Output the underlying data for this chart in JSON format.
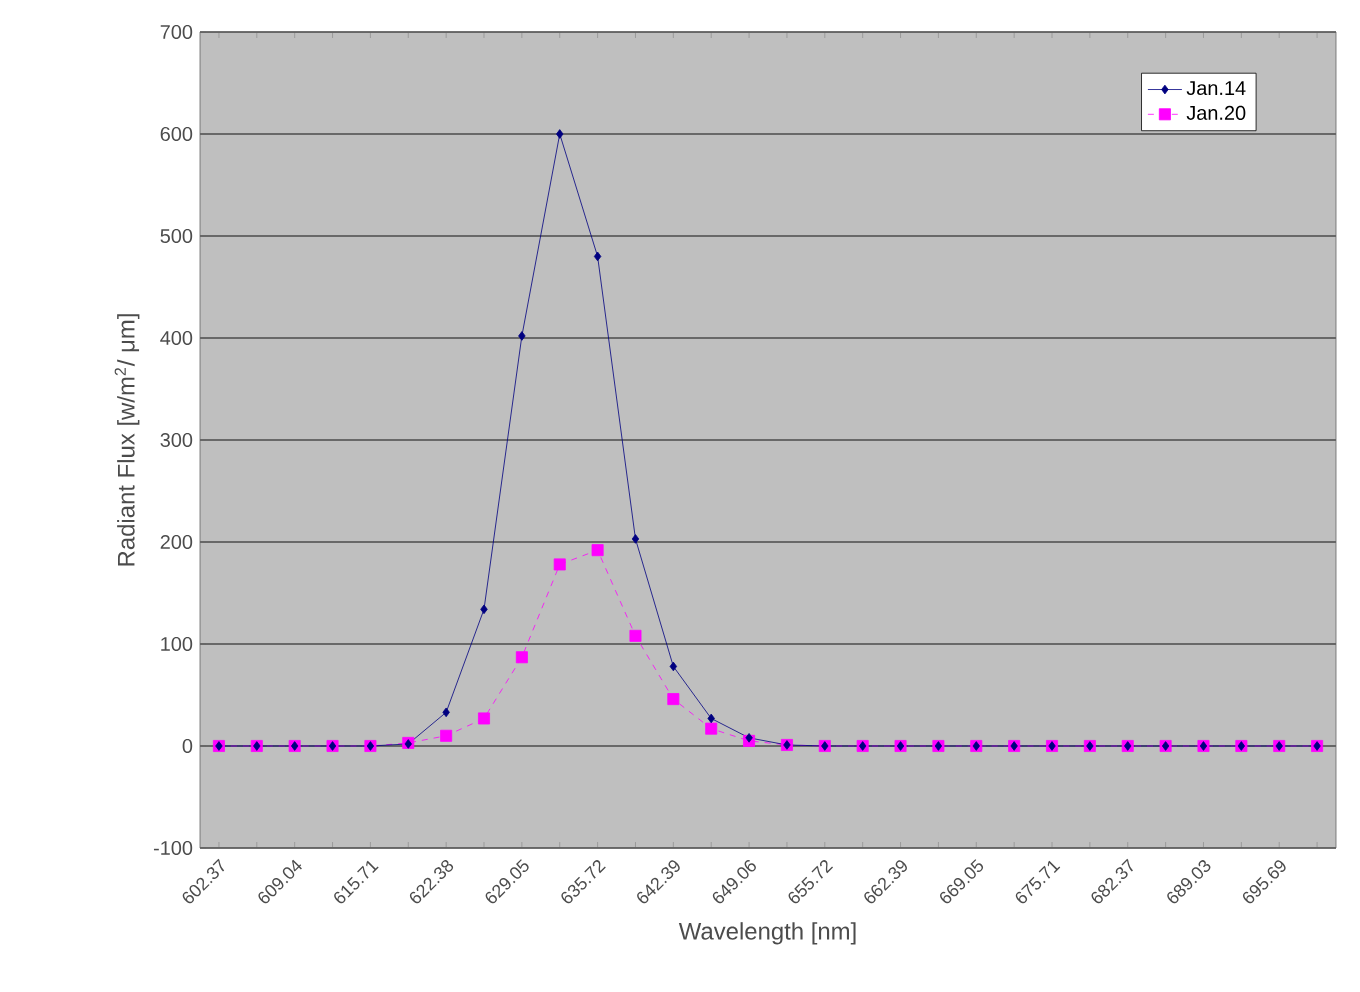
{
  "chart_data": {
    "type": "line",
    "xlabel": "Wavelength [nm]",
    "ylabel": "Radiant Flux [w/m$^{2}$/ μm]",
    "categories": [
      "602.37",
      null,
      "609.04",
      null,
      "615.71",
      null,
      "622.38",
      null,
      "629.05",
      null,
      "635.72",
      null,
      "642.39",
      null,
      "649.06",
      null,
      "655.72",
      null,
      "662.39",
      null,
      "669.05",
      null,
      "675.71",
      null,
      "682.37",
      null,
      "689.03",
      null,
      "695.69",
      null
    ],
    "series": [
      {
        "name": "Jan.14",
        "color": "#000080",
        "marker": "diamond",
        "line_style": "solid",
        "values": [
          0,
          0,
          0,
          0,
          0,
          2,
          33,
          134,
          402,
          600,
          480,
          203,
          78,
          27,
          8,
          1,
          0,
          0,
          0,
          0,
          0,
          0,
          0,
          0,
          0,
          0,
          0,
          0,
          0,
          0
        ]
      },
      {
        "name": "Jan.20",
        "color": "#ff00ff",
        "marker": "square",
        "line_style": "dashed",
        "values": [
          0,
          0,
          0,
          0,
          0,
          3,
          10,
          27,
          87,
          178,
          192,
          108,
          46,
          17,
          5,
          1,
          0,
          0,
          0,
          0,
          0,
          0,
          0,
          0,
          0,
          0,
          0,
          0,
          0,
          0
        ]
      }
    ],
    "ylim": [
      -100,
      700
    ],
    "yticks": [
      -100,
      0,
      100,
      200,
      300,
      400,
      500,
      600,
      700
    ],
    "grid": "y",
    "legend": "top right"
  }
}
